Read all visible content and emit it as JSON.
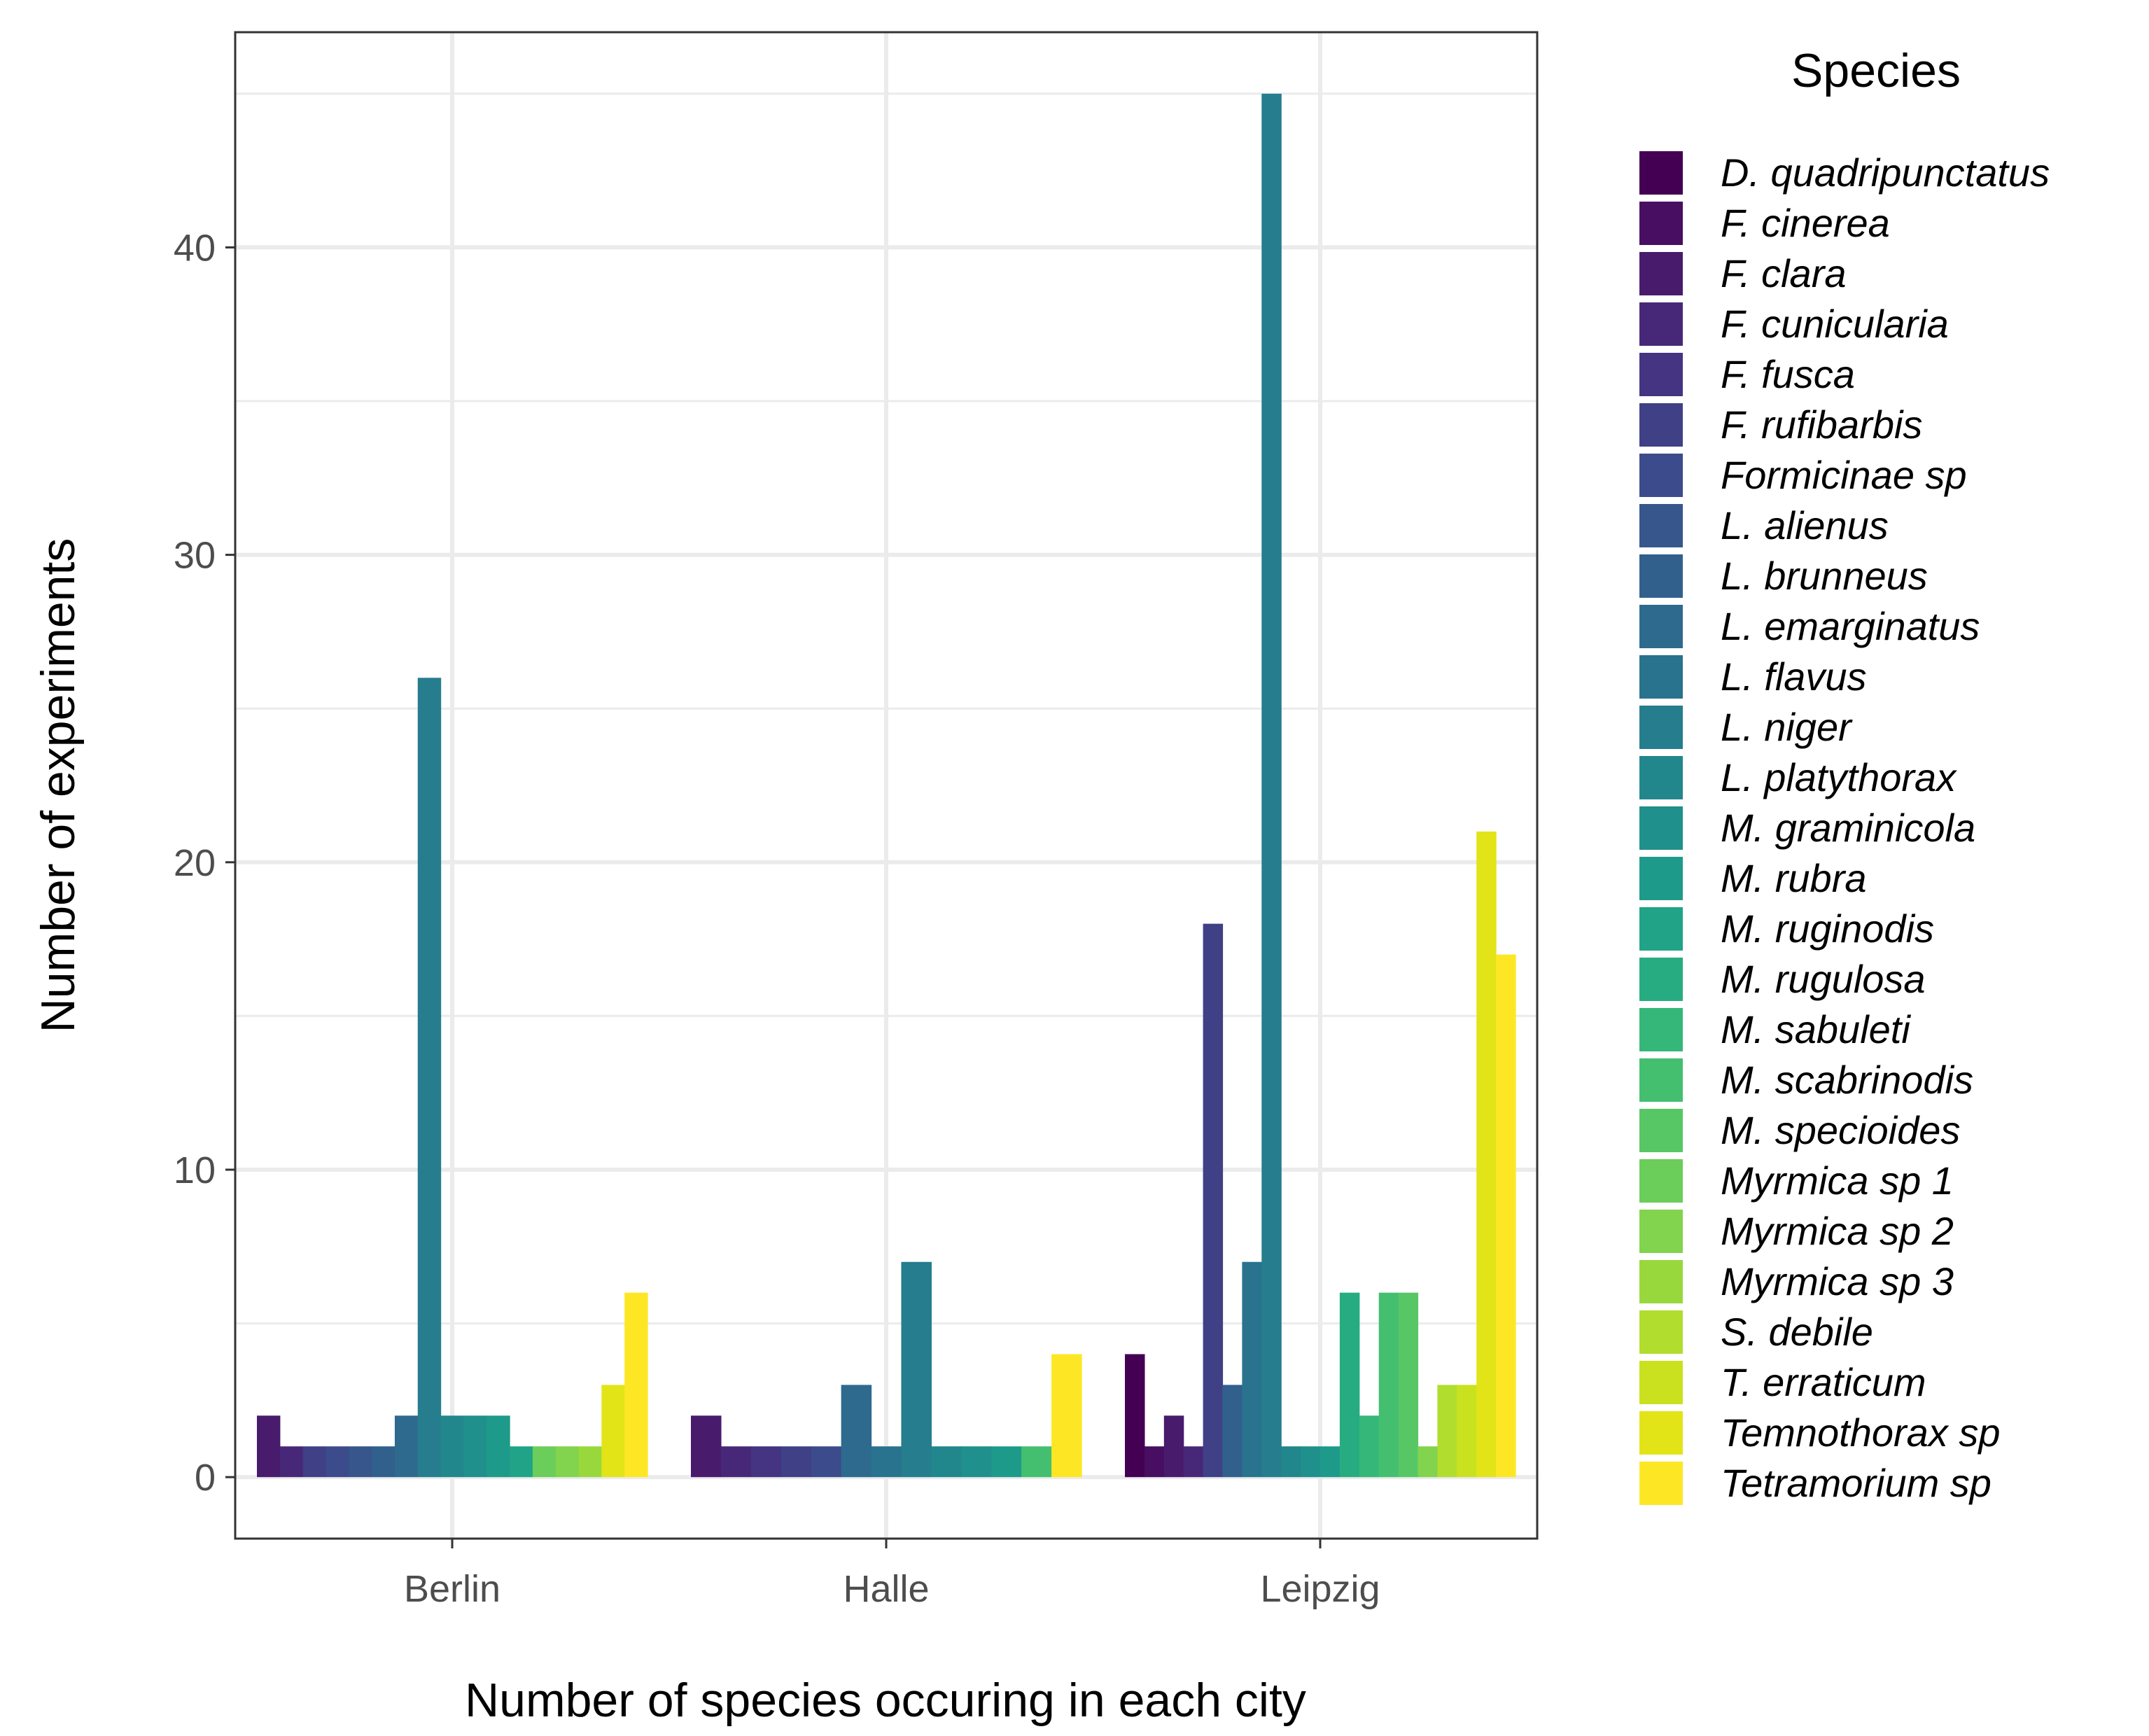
{
  "chart_data": {
    "type": "bar",
    "xlabel": "Number of species occuring in each city",
    "ylabel": "Number of experiments",
    "categories": [
      "Berlin",
      "Halle",
      "Leipzig"
    ],
    "ylim": [
      -2,
      47
    ],
    "yticks": [
      0,
      10,
      20,
      30,
      40
    ],
    "grid": true,
    "legend": {
      "title": "Species",
      "position": "right"
    },
    "series": [
      {
        "name": "D. quadripunctatus",
        "color": "#440154"
      },
      {
        "name": "F. cinerea",
        "color": "#470E61"
      },
      {
        "name": "F. clara",
        "color": "#481B6D"
      },
      {
        "name": "F. cunicularia",
        "color": "#472878"
      },
      {
        "name": "F. fusca",
        "color": "#443481"
      },
      {
        "name": "F. rufibarbis",
        "color": "#404087"
      },
      {
        "name": "Formicinae sp",
        "color": "#3B4B8B"
      },
      {
        "name": "L. alienus",
        "color": "#36568C"
      },
      {
        "name": "L. brunneus",
        "color": "#31608D"
      },
      {
        "name": "L. emarginatus",
        "color": "#2D6A8E"
      },
      {
        "name": "L. flavus",
        "color": "#29738E"
      },
      {
        "name": "L. niger",
        "color": "#257D8E"
      },
      {
        "name": "L. platythorax",
        "color": "#22868D"
      },
      {
        "name": "M. graminicola",
        "color": "#1F908C"
      },
      {
        "name": "M. rubra",
        "color": "#1E9A8A"
      },
      {
        "name": "M. ruginodis",
        "color": "#20A386"
      },
      {
        "name": "M. rugulosa",
        "color": "#27AC81"
      },
      {
        "name": "M. sabuleti",
        "color": "#35B779"
      },
      {
        "name": "M. scabrinodis",
        "color": "#44BF70"
      },
      {
        "name": "M. specioides",
        "color": "#57C766"
      },
      {
        "name": "Myrmica sp 1",
        "color": "#6BCD5A"
      },
      {
        "name": "Myrmica sp 2",
        "color": "#82D34D"
      },
      {
        "name": "Myrmica sp 3",
        "color": "#99D83D"
      },
      {
        "name": "S. debile",
        "color": "#B1DD2F"
      },
      {
        "name": "T. erraticum",
        "color": "#CAE11F"
      },
      {
        "name": "Temnothorax sp",
        "color": "#E2E418"
      },
      {
        "name": "Tetramorium sp",
        "color": "#FDE725"
      }
    ],
    "groups": [
      {
        "category": "Berlin",
        "bars": [
          {
            "species": "F. clara",
            "value": 2
          },
          {
            "species": "F. cunicularia",
            "value": 1
          },
          {
            "species": "F. rufibarbis",
            "value": 1
          },
          {
            "species": "Formicinae sp",
            "value": 1
          },
          {
            "species": "L. alienus",
            "value": 1
          },
          {
            "species": "L. brunneus",
            "value": 1
          },
          {
            "species": "L. emarginatus",
            "value": 2
          },
          {
            "species": "L. niger",
            "value": 26
          },
          {
            "species": "L. platythorax",
            "value": 2
          },
          {
            "species": "M. graminicola",
            "value": 2
          },
          {
            "species": "M. rubra",
            "value": 2
          },
          {
            "species": "M. ruginodis",
            "value": 1
          },
          {
            "species": "Myrmica sp 1",
            "value": 1
          },
          {
            "species": "Myrmica sp 2",
            "value": 1
          },
          {
            "species": "Myrmica sp 3",
            "value": 1
          },
          {
            "species": "Temnothorax sp",
            "value": 3
          },
          {
            "species": "Tetramorium sp",
            "value": 6
          }
        ]
      },
      {
        "category": "Halle",
        "bars": [
          {
            "species": "F. clara",
            "value": 2
          },
          {
            "species": "F. cunicularia",
            "value": 1
          },
          {
            "species": "F. fusca",
            "value": 1
          },
          {
            "species": "F. rufibarbis",
            "value": 1
          },
          {
            "species": "Formicinae sp",
            "value": 1
          },
          {
            "species": "L. emarginatus",
            "value": 3
          },
          {
            "species": "L. flavus",
            "value": 1
          },
          {
            "species": "L. niger",
            "value": 7
          },
          {
            "species": "L. platythorax",
            "value": 1
          },
          {
            "species": "M. graminicola",
            "value": 1
          },
          {
            "species": "M. rubra",
            "value": 1
          },
          {
            "species": "M. scabrinodis",
            "value": 1
          },
          {
            "species": "Tetramorium sp",
            "value": 4
          }
        ]
      },
      {
        "category": "Leipzig",
        "bars": [
          {
            "species": "D. quadripunctatus",
            "value": 4
          },
          {
            "species": "F. cinerea",
            "value": 1
          },
          {
            "species": "F. clara",
            "value": 2
          },
          {
            "species": "F. cunicularia",
            "value": 1
          },
          {
            "species": "F. rufibarbis",
            "value": 18
          },
          {
            "species": "L. brunneus",
            "value": 3
          },
          {
            "species": "L. flavus",
            "value": 7
          },
          {
            "species": "L. niger",
            "value": 45
          },
          {
            "species": "L. platythorax",
            "value": 1
          },
          {
            "species": "M. graminicola",
            "value": 1
          },
          {
            "species": "M. rubra",
            "value": 1
          },
          {
            "species": "M. rugulosa",
            "value": 6
          },
          {
            "species": "M. sabuleti",
            "value": 2
          },
          {
            "species": "M. scabrinodis",
            "value": 6
          },
          {
            "species": "M. specioides",
            "value": 6
          },
          {
            "species": "Myrmica sp 2",
            "value": 1
          },
          {
            "species": "S. debile",
            "value": 3
          },
          {
            "species": "T. erraticum",
            "value": 3
          },
          {
            "species": "Temnothorax sp",
            "value": 21
          },
          {
            "species": "Tetramorium sp",
            "value": 17
          }
        ]
      }
    ]
  }
}
